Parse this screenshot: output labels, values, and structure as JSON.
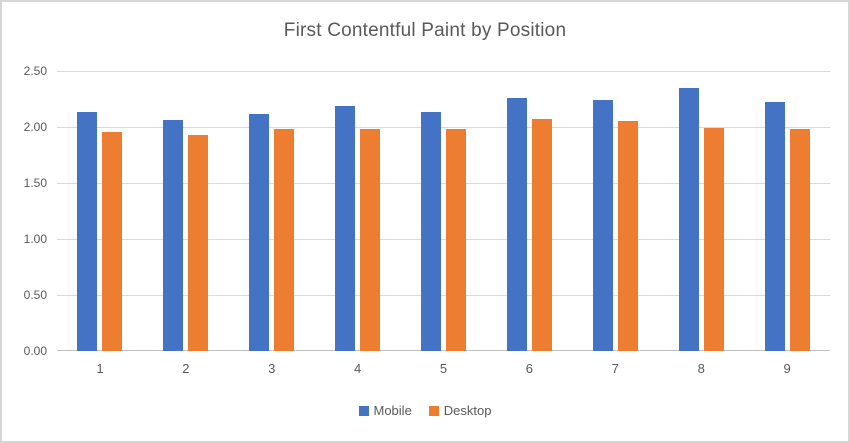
{
  "title": "First Contentful Paint by Position",
  "colors": {
    "mobile_blue": "#4472C4",
    "desktop_orange": "#ED7D31",
    "gridline": "#D9D9D9",
    "axis_line": "#BFBFBF",
    "text_gray": "#595959",
    "border_gray": "#D6D6D6"
  },
  "chart_data": {
    "type": "bar",
    "title": "First Contentful Paint by Position",
    "categories": [
      "1",
      "2",
      "3",
      "4",
      "5",
      "6",
      "7",
      "8",
      "9"
    ],
    "series": [
      {
        "name": "Mobile",
        "color": "#4472C4",
        "values": [
          2.13,
          2.06,
          2.12,
          2.19,
          2.13,
          2.26,
          2.24,
          2.35,
          2.22
        ]
      },
      {
        "name": "Desktop",
        "color": "#ED7D31",
        "values": [
          1.96,
          1.93,
          1.98,
          1.98,
          1.98,
          2.07,
          2.05,
          1.99,
          1.98
        ]
      }
    ],
    "xlabel": "",
    "ylabel": "",
    "ylim": [
      0,
      2.5
    ],
    "ytick_interval": 0.5,
    "yticks": [
      "0.00",
      "0.50",
      "1.00",
      "1.50",
      "2.00",
      "2.50"
    ],
    "grid": true,
    "legend_position": "bottom",
    "legend_entries": [
      "Mobile",
      "Desktop"
    ]
  }
}
